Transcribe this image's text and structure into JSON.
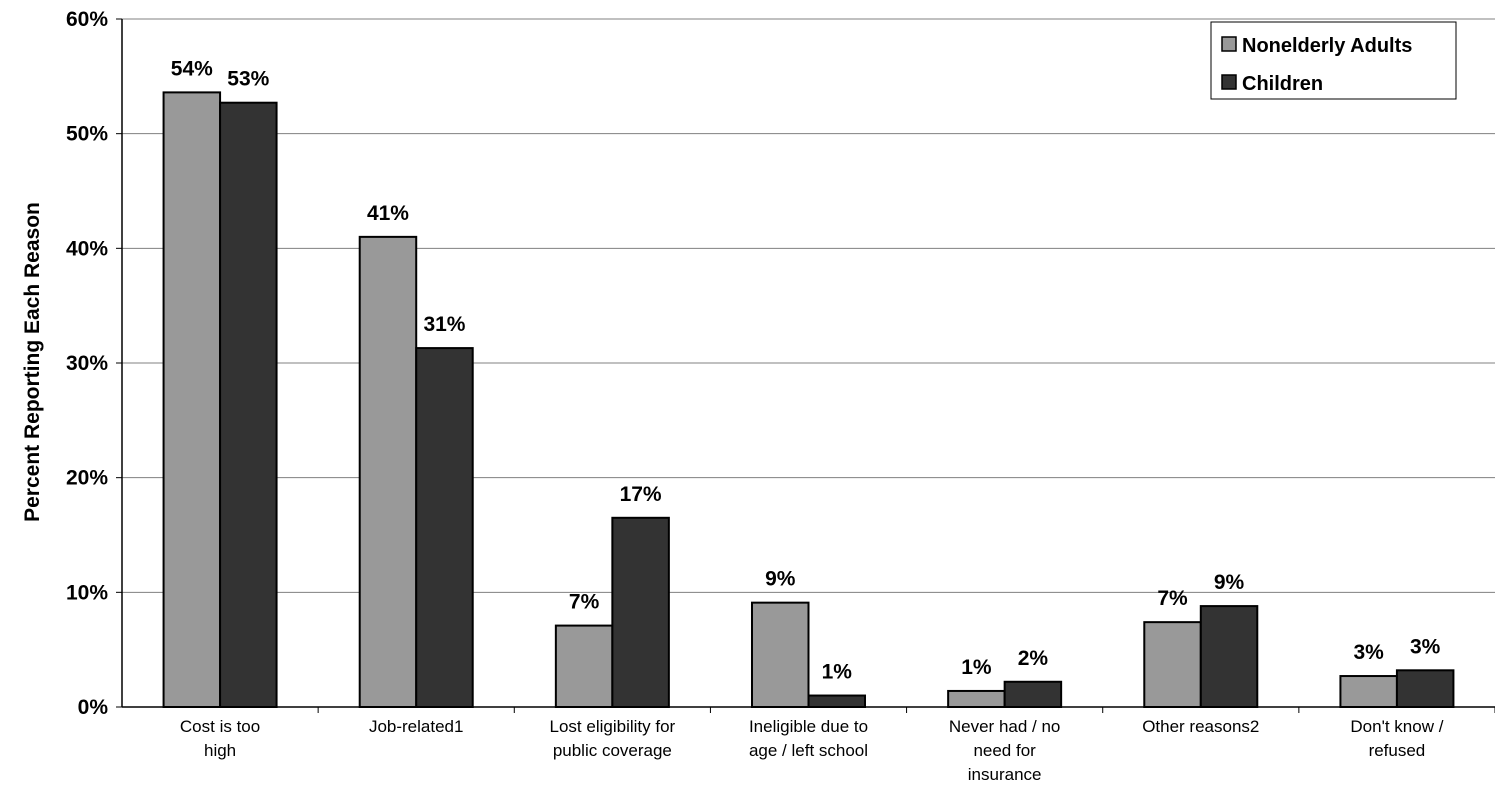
{
  "chart_data": {
    "type": "bar",
    "title": "",
    "xlabel": "",
    "ylabel": "Percent Reporting Each Reason",
    "ylim": [
      0,
      60
    ],
    "yticks": [
      "0%",
      "10%",
      "20%",
      "30%",
      "40%",
      "50%",
      "60%"
    ],
    "ytick_values": [
      0,
      10,
      20,
      30,
      40,
      50,
      60
    ],
    "grid": true,
    "legend_position": "top-right",
    "categories": [
      [
        "Cost is too",
        "high"
      ],
      [
        "Job-related1"
      ],
      [
        "Lost eligibility for",
        "public coverage"
      ],
      [
        "Ineligible due to",
        "age / left school"
      ],
      [
        "Never had / no",
        "need for",
        "insurance"
      ],
      [
        "Other reasons2"
      ],
      [
        "Don't know /",
        "refused"
      ]
    ],
    "series": [
      {
        "name": "Nonelderly Adults",
        "color": "#999999",
        "values": [
          53.6,
          41.0,
          7.1,
          9.1,
          1.4,
          7.4,
          2.7
        ],
        "labels": [
          "54%",
          "41%",
          "7%",
          "9%",
          "1%",
          "7%",
          "3%"
        ]
      },
      {
        "name": "Children",
        "color": "#333333",
        "values": [
          52.7,
          31.3,
          16.5,
          1.0,
          2.2,
          8.8,
          3.2
        ],
        "labels": [
          "53%",
          "31%",
          "17%",
          "1%",
          "2%",
          "9%",
          "3%"
        ]
      }
    ]
  }
}
